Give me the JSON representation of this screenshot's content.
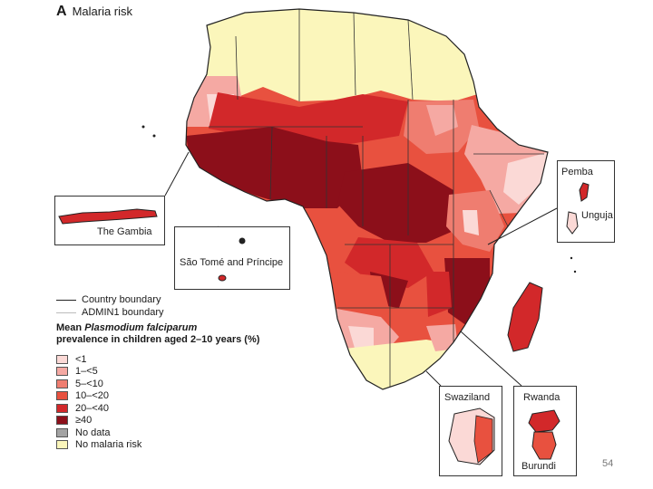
{
  "title": {
    "panel": "A",
    "text": "Malaria risk"
  },
  "insets": {
    "gambia": "The Gambia",
    "sao_tome": "São Tomé and Príncipe",
    "pemba": "Pemba",
    "unguja": "Unguja",
    "swaziland": "Swaziland",
    "rwanda": "Rwanda",
    "burundi": "Burundi"
  },
  "legend": {
    "country_boundary": "Country boundary",
    "admin1_boundary": "ADMIN1 boundary",
    "heading_prefix": "Mean ",
    "heading_species": "Plasmodium falciparum",
    "heading_suffix": "prevalence in children aged 2–10 years (%)",
    "classes": [
      {
        "label": "<1",
        "color": "#fbd9d6"
      },
      {
        "label": "1–<5",
        "color": "#f5a9a3"
      },
      {
        "label": "5–<10",
        "color": "#ef7d70"
      },
      {
        "label": "10–<20",
        "color": "#e8513f"
      },
      {
        "label": "20–<40",
        "color": "#d2282a"
      },
      {
        "label": "≥40",
        "color": "#8c0f1a"
      },
      {
        "label": "No data",
        "color": "#a3a3a3"
      },
      {
        "label": "No malaria risk",
        "color": "#fbf6bb"
      }
    ]
  },
  "page_number": "54"
}
